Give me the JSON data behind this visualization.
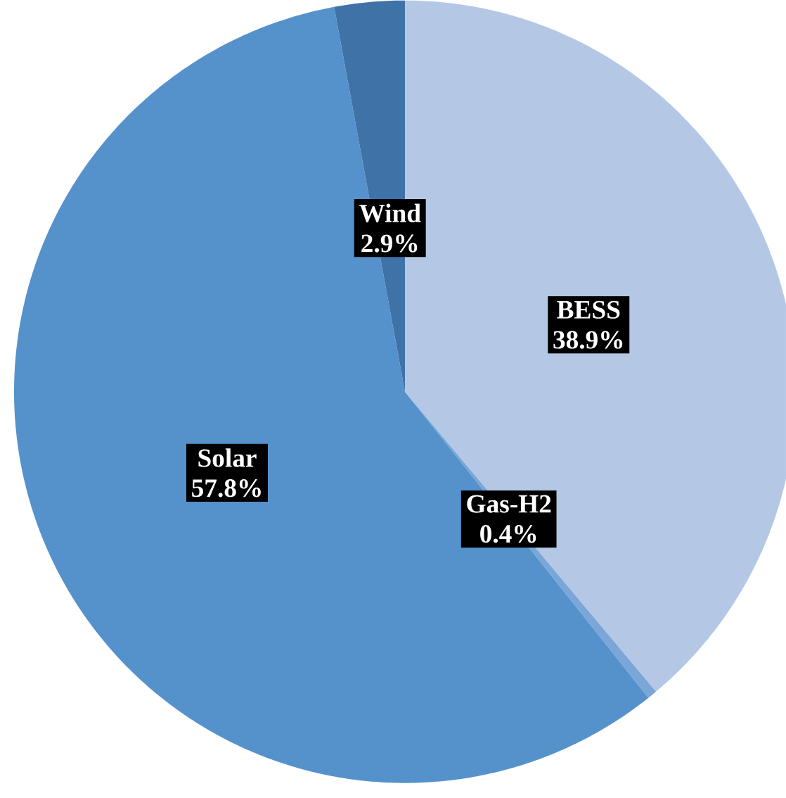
{
  "chart_data": {
    "type": "pie",
    "categories": [
      "BESS",
      "Gas-H2",
      "Solar",
      "Wind"
    ],
    "values": [
      38.9,
      0.4,
      57.8,
      2.9
    ],
    "value_labels": [
      "38.9%",
      "0.4%",
      "57.8%",
      "2.9%"
    ],
    "colors": [
      "#b4c8e6",
      "#7aa6d8",
      "#5592cc",
      "#3f73a8"
    ]
  }
}
